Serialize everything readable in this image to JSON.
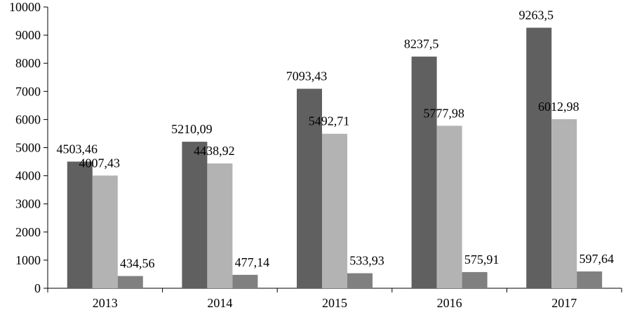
{
  "chart_data": {
    "type": "bar",
    "title": "",
    "xlabel": "",
    "ylabel": "",
    "categories": [
      "2013",
      "2014",
      "2015",
      "2016",
      "2017"
    ],
    "series": [
      {
        "values": [
          4503.46,
          5210.09,
          7093.43,
          8237.5,
          9263.5
        ],
        "labels": [
          "4503,46",
          "5210,09",
          "7093,43",
          "8237,5",
          "9263,5"
        ],
        "color": "#606060"
      },
      {
        "values": [
          4007.43,
          4438.92,
          5492.71,
          5777.98,
          6012.98
        ],
        "labels": [
          "4007,43",
          "4438,92",
          "5492,71",
          "5777,98",
          "6012,98"
        ],
        "color": "#b3b3b3"
      },
      {
        "values": [
          434.56,
          477.14,
          533.93,
          575.91,
          597.64
        ],
        "labels": [
          "434,56",
          "477,14",
          "533,93",
          "575,91",
          "597,64"
        ],
        "color": "#808080"
      }
    ],
    "ylim": [
      0,
      10000
    ],
    "yticks": [
      0,
      1000,
      2000,
      3000,
      4000,
      5000,
      6000,
      7000,
      8000,
      9000,
      10000
    ],
    "grid": false,
    "legend": "none"
  }
}
